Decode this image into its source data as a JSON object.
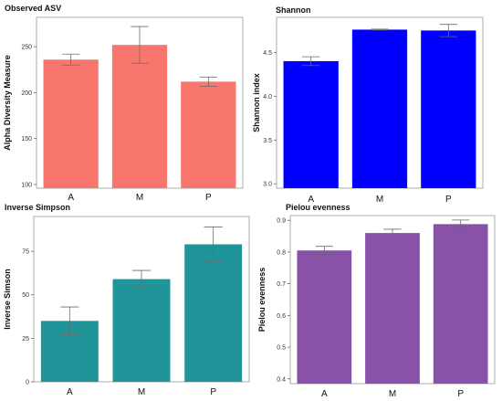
{
  "chart_data": [
    {
      "type": "bar",
      "title": "Observed ASV",
      "ylabel": "Alpha Diversity Measure",
      "categories": [
        "A",
        "M",
        "P"
      ],
      "values": [
        236,
        252,
        212
      ],
      "errors": [
        6,
        20,
        5
      ],
      "ylim": [
        96,
        282
      ],
      "yticks": [
        100,
        150,
        200,
        250
      ],
      "color": "#F8766D"
    },
    {
      "type": "bar",
      "title": "Shannon",
      "ylabel": "Shannon index",
      "categories": [
        "A",
        "M",
        "P"
      ],
      "values": [
        4.4,
        4.76,
        4.75
      ],
      "errors": [
        0.05,
        0.005,
        0.07
      ],
      "ylim": [
        2.95,
        4.9
      ],
      "yticks": [
        3.0,
        3.5,
        4.0,
        4.5
      ],
      "color": "#0000FF"
    },
    {
      "type": "bar",
      "title": "Inverse Simpson",
      "ylabel": "Inverse Simson",
      "categories": [
        "A",
        "M",
        "P"
      ],
      "values": [
        35,
        59,
        79
      ],
      "errors": [
        8,
        5,
        10
      ],
      "ylim": [
        0,
        95
      ],
      "yticks": [
        0,
        25,
        50,
        75
      ],
      "color": "#1F9499"
    },
    {
      "type": "bar",
      "title": "Pielou evenness",
      "ylabel": "Pielou evenness",
      "categories": [
        "A",
        "M",
        "P"
      ],
      "values": [
        0.805,
        0.86,
        0.888
      ],
      "errors": [
        0.013,
        0.012,
        0.013
      ],
      "ylim": [
        0.385,
        0.915
      ],
      "yticks": [
        0.4,
        0.5,
        0.6,
        0.7,
        0.8,
        0.9
      ],
      "color": "#8852A8"
    }
  ]
}
